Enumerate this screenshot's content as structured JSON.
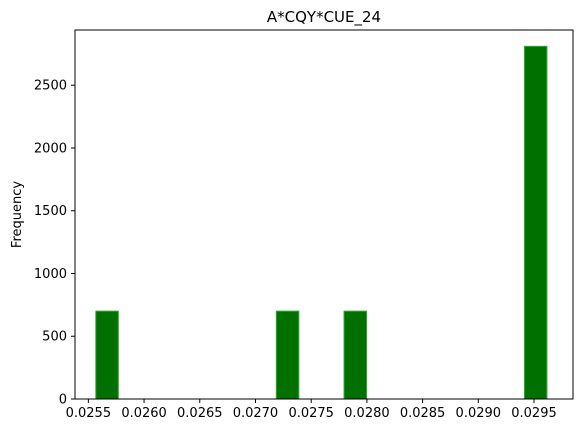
{
  "chart_data": {
    "type": "bar",
    "title": "A*CQY*CUE_24",
    "xlabel": "",
    "ylabel": "Frequency",
    "xlim": [
      0.02538,
      0.02985
    ],
    "ylim": [
      0,
      2940
    ],
    "bin_width": 0.000202,
    "bins": [
      {
        "x": 0.025668,
        "value": 700
      },
      {
        "x": 0.027288,
        "value": 700
      },
      {
        "x": 0.027896,
        "value": 700
      },
      {
        "x": 0.029515,
        "value": 2810
      }
    ],
    "x_ticks": [
      "0.0255",
      "0.0260",
      "0.0265",
      "0.0270",
      "0.0275",
      "0.0280",
      "0.0285",
      "0.0290",
      "0.0295"
    ],
    "x_tick_values": [
      0.0255,
      0.026,
      0.0265,
      0.027,
      0.0275,
      0.028,
      0.0285,
      0.029,
      0.0295
    ],
    "y_ticks": [
      "0",
      "500",
      "1000",
      "1500",
      "2000",
      "2500"
    ],
    "y_tick_values": [
      0,
      500,
      1000,
      1500,
      2000,
      2500
    ],
    "bar_color": "#007000",
    "edge_color": "#33a833",
    "grid": false
  }
}
